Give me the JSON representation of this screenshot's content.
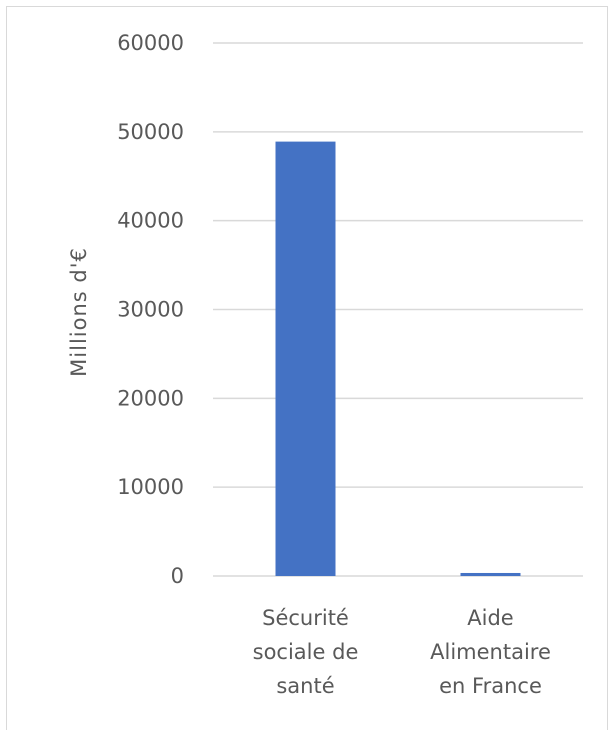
{
  "chart_data": {
    "type": "bar",
    "title": "",
    "xlabel": "",
    "ylabel": "Millions d'€",
    "categories": [
      [
        "Sécurité",
        "sociale de",
        "santé"
      ],
      [
        "Aide",
        "Alimentaire",
        "en France"
      ]
    ],
    "values": [
      48900,
      340
    ],
    "ylim": [
      0,
      60000
    ],
    "yticks": [
      0,
      10000,
      20000,
      30000,
      40000,
      50000,
      60000
    ],
    "grid": true,
    "legend": "none",
    "bar_color": "#4472c4",
    "gridline_color": "#d9d9d9",
    "text_color": "#595959"
  }
}
